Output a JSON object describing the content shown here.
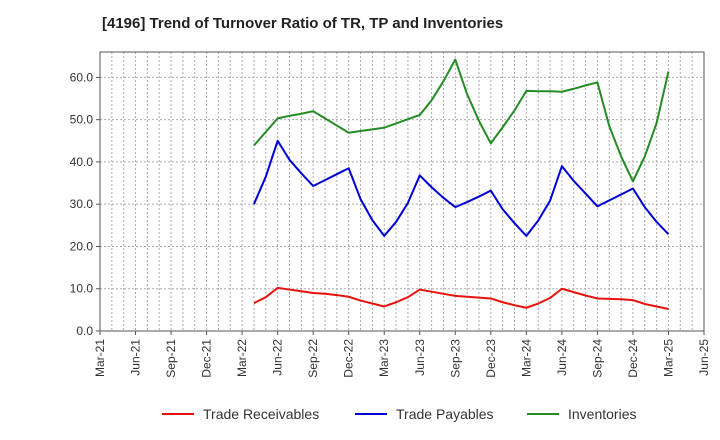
{
  "chart_data": {
    "type": "line",
    "title": "[4196]  Trend of Turnover Ratio of TR, TP and Inventories",
    "xlabel": "",
    "ylabel": "",
    "x_ticks": [
      "Mar-21",
      "Jun-21",
      "Sep-21",
      "Dec-21",
      "Mar-22",
      "Jun-22",
      "Sep-22",
      "Dec-22",
      "Mar-23",
      "Jun-23",
      "Sep-23",
      "Dec-23",
      "Mar-24",
      "Jun-24",
      "Sep-24",
      "Dec-24",
      "Mar-25",
      "Jun-25"
    ],
    "y_ticks": [
      "0.0",
      "10.0",
      "20.0",
      "30.0",
      "40.0",
      "50.0",
      "60.0"
    ],
    "ylim": [
      0,
      66
    ],
    "grid": true,
    "legend_position": "bottom",
    "x": [
      "Apr-22",
      "May-22",
      "Jun-22",
      "Jul-22",
      "Aug-22",
      "Sep-22",
      "Oct-22",
      "Nov-22",
      "Dec-22",
      "Jan-23",
      "Feb-23",
      "Mar-23",
      "Apr-23",
      "May-23",
      "Jun-23",
      "Jul-23",
      "Aug-23",
      "Sep-23",
      "Oct-23",
      "Nov-23",
      "Dec-23",
      "Jan-24",
      "Feb-24",
      "Mar-24",
      "Apr-24",
      "May-24",
      "Jun-24",
      "Jul-24",
      "Aug-24",
      "Sep-24",
      "Oct-24",
      "Nov-24",
      "Dec-24",
      "Jan-25",
      "Feb-25",
      "Mar-25"
    ],
    "series": [
      {
        "name": "Trade Receivables",
        "color": "#e8120c",
        "values": [
          6.6,
          8.0,
          10.2,
          9.8,
          9.4,
          9.0,
          8.8,
          8.5,
          8.1,
          7.2,
          6.5,
          5.8,
          6.8,
          8.0,
          9.8,
          9.3,
          8.8,
          8.3,
          8.1,
          7.9,
          7.7,
          6.8,
          6.1,
          5.5,
          6.5,
          7.8,
          10.0,
          9.2,
          8.4,
          7.7,
          7.6,
          7.5,
          7.3,
          6.4,
          5.8,
          5.2
        ]
      },
      {
        "name": "Trade Payables",
        "color": "#0000d6",
        "values": [
          30.0,
          36.5,
          45.0,
          40.5,
          37.3,
          34.3,
          35.7,
          37.1,
          38.5,
          31.2,
          26.2,
          22.5,
          25.8,
          30.3,
          36.8,
          34.0,
          31.5,
          29.3,
          30.5,
          31.8,
          33.2,
          28.8,
          25.5,
          22.5,
          26.1,
          30.8,
          39.0,
          35.5,
          32.5,
          29.5,
          30.9,
          32.3,
          33.7,
          29.3,
          25.8,
          22.9
        ]
      },
      {
        "name": "Inventories",
        "color": "#238c23",
        "values": [
          43.9,
          47.1,
          50.3,
          50.9,
          51.4,
          52.0,
          50.3,
          48.6,
          46.9,
          47.3,
          47.7,
          48.1,
          49.1,
          50.1,
          51.1,
          54.6,
          59.1,
          64.2,
          56.0,
          49.7,
          44.4,
          48.2,
          52.2,
          56.8,
          56.7,
          56.7,
          56.6,
          57.3,
          58.1,
          58.8,
          48.5,
          41.3,
          35.4,
          41.3,
          49.2,
          61.4
        ]
      }
    ]
  }
}
